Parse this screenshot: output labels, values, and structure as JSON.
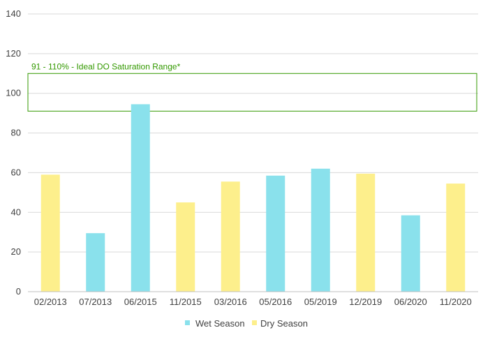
{
  "chart_data": {
    "type": "bar",
    "categories": [
      "02/2013",
      "07/2013",
      "06/2015",
      "11/2015",
      "03/2016",
      "05/2016",
      "05/2019",
      "12/2019",
      "06/2020",
      "11/2020"
    ],
    "values": [
      59,
      29.5,
      94.5,
      45,
      55.5,
      58.5,
      62,
      59.5,
      38.5,
      54.5
    ],
    "season": [
      "Dry Season",
      "Wet Season",
      "Wet Season",
      "Dry Season",
      "Dry Season",
      "Wet Season",
      "Wet Season",
      "Dry Season",
      "Wet Season",
      "Dry Season"
    ],
    "ylim": [
      0,
      140
    ],
    "yticks": [
      0,
      20,
      40,
      60,
      80,
      100,
      120,
      140
    ],
    "grid": true,
    "legend_position": "bottom",
    "legend": [
      {
        "name": "Wet Season",
        "color": "#8ae1ec"
      },
      {
        "name": "Dry Season",
        "color": "#fdef8c"
      }
    ],
    "reference_band": {
      "label": "91 - 110% - Ideal DO Saturation Range*",
      "low": 91,
      "high": 110,
      "color": "#339900"
    }
  }
}
